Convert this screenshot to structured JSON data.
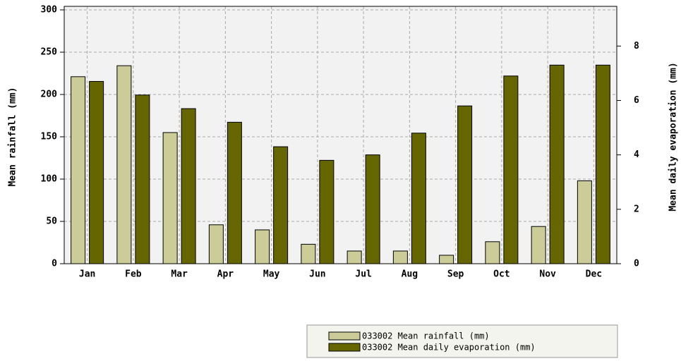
{
  "chart_data": {
    "type": "bar",
    "categories": [
      "Jan",
      "Feb",
      "Mar",
      "Apr",
      "May",
      "Jun",
      "Jul",
      "Aug",
      "Sep",
      "Oct",
      "Nov",
      "Dec"
    ],
    "series": [
      {
        "name": "033002 Mean rainfall (mm)",
        "color": "#cccc99",
        "values": [
          221,
          234,
          155,
          46,
          40,
          23,
          15,
          15,
          10,
          26,
          44,
          98
        ]
      },
      {
        "name": "033002 Mean daily evaporation (mm)",
        "color": "#666600",
        "axis": "y2",
        "values": [
          6.7,
          6.2,
          5.7,
          5.2,
          4.3,
          3.8,
          4.0,
          4.8,
          5.8,
          6.9,
          7.3,
          7.3
        ]
      }
    ],
    "ylabel": "Mean rainfall (mm)",
    "y2label": "Mean daily evaporation (mm)",
    "ylim": [
      0,
      300
    ],
    "yticks": [
      0,
      50,
      100,
      150,
      200,
      250,
      300
    ],
    "y2lim": [
      0,
      9.33
    ],
    "y2ticks": [
      0,
      2,
      4,
      6,
      8
    ],
    "grid": true,
    "legend": "bottom-right"
  }
}
